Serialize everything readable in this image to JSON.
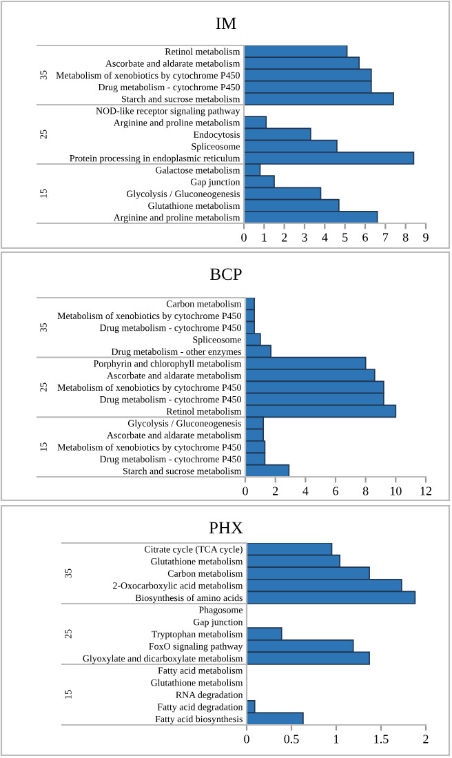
{
  "chart_data": [
    {
      "type": "bar",
      "orientation": "horizontal",
      "title": "IM",
      "annotations": [
        "35",
        "25",
        "15"
      ],
      "categories": [
        "Retinol metabolism",
        "Ascorbate and aldarate metabolism",
        "Metabolism of xenobiotics by cytochrome P450",
        "Drug metabolism - cytochrome P450",
        "Starch and sucrose metabolism",
        "NOD-like receptor signaling pathway",
        "Arginine and proline metabolism",
        "Endocytosis",
        "Spliceosome",
        "Protein processing in endoplasmic reticulum",
        "Galactose metabolism",
        "Gap junction",
        "Glycolysis / Gluconeogenesis",
        "Glutathione metabolism",
        "Arginine and proline metabolism"
      ],
      "values": [
        5.1,
        5.7,
        6.3,
        6.3,
        7.4,
        0,
        1.1,
        3.3,
        4.6,
        8.4,
        0.8,
        1.5,
        3.8,
        4.7,
        6.6
      ],
      "color": "#2e75b6",
      "xlim": [
        0,
        9
      ],
      "xticks": [
        0,
        1,
        2,
        3,
        4,
        5,
        6,
        7,
        8,
        9
      ],
      "grid": false,
      "legend": false
    },
    {
      "type": "bar",
      "orientation": "horizontal",
      "title": "BCP",
      "annotations": [
        "35",
        "25",
        "15"
      ],
      "categories": [
        "Carbon metabolism",
        "Metabolism of xenobiotics by cytochrome P450",
        "Drug metabolism - cytochrome P450",
        "Spliceosome",
        "Drug metabolism - other enzymes",
        "Porphyrin and chlorophyll metabolism",
        "Ascorbate and aldarate metabolism",
        "Metabolism of xenobiotics by cytochrome P450",
        "Drug metabolism - cytochrome P450",
        "Retinol metabolism",
        "Glycolysis / Gluconeogenesis",
        "Ascorbate and aldarate metabolism",
        "Metabolism of xenobiotics by cytochrome P450",
        "Drug metabolism - cytochrome P450",
        "Starch and sucrose metabolism"
      ],
      "values": [
        0.6,
        0.6,
        0.6,
        1.0,
        1.7,
        8.0,
        8.6,
        9.2,
        9.2,
        10.0,
        1.2,
        1.2,
        1.3,
        1.3,
        2.9
      ],
      "color": "#2e75b6",
      "xlim": [
        0,
        12
      ],
      "xticks": [
        0,
        2,
        4,
        6,
        8,
        10,
        12
      ],
      "grid": false,
      "legend": false
    },
    {
      "type": "bar",
      "orientation": "horizontal",
      "title": "PHX",
      "annotations": [
        "35",
        "25",
        "15"
      ],
      "categories": [
        "Citrate cycle (TCA cycle)",
        "Glutathione metabolism",
        "Carbon metabolism",
        "2-Oxocarboxylic acid metabolism",
        "Biosynthesis of amino acids",
        "Phagosome",
        "Gap junction",
        "Tryptophan metabolism",
        "FoxO signaling pathway",
        "Glyoxylate and dicarboxylate metabolism",
        "Fatty acid metabolism",
        "Glutathione metabolism",
        "RNA degradation",
        "Fatty acid degradation",
        "Fatty acid biosynthesis"
      ],
      "values": [
        0.95,
        1.04,
        1.37,
        1.73,
        1.88,
        0,
        0,
        0.39,
        1.19,
        1.37,
        0,
        0,
        0,
        0.09,
        0.63
      ],
      "color": "#2e75b6",
      "xlim": [
        0,
        2
      ],
      "xticks": [
        0,
        0.5,
        1,
        1.5,
        2
      ],
      "grid": false,
      "legend": false
    }
  ]
}
